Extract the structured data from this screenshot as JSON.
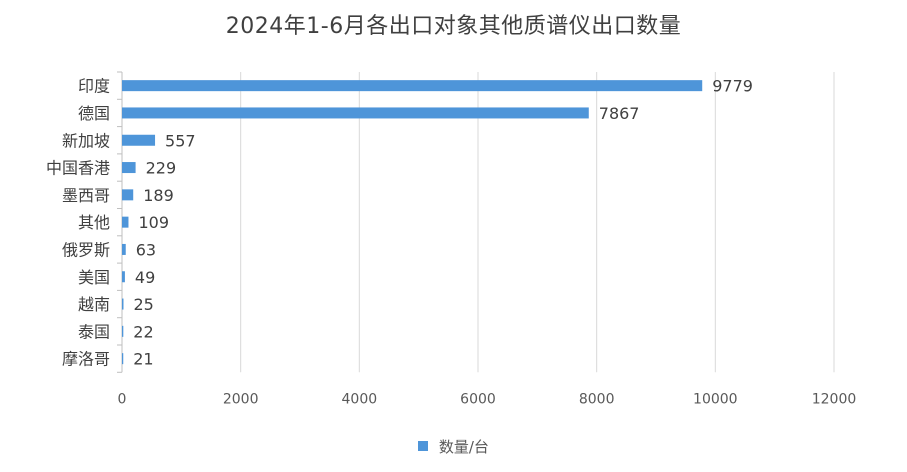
{
  "chart_data": {
    "type": "bar",
    "orientation": "horizontal",
    "title": "2024年1-6月各出口对象其他质谱仪出口数量",
    "categories": [
      "印度",
      "德国",
      "新加坡",
      "中国香港",
      "墨西哥",
      "其他",
      "俄罗斯",
      "美国",
      "越南",
      "泰国",
      "摩洛哥"
    ],
    "series": [
      {
        "name": "数量/台",
        "values": [
          9779,
          7867,
          557,
          229,
          189,
          109,
          63,
          49,
          25,
          22,
          21
        ]
      }
    ],
    "xlim": [
      0,
      12000
    ],
    "x_ticks": [
      0,
      2000,
      4000,
      6000,
      8000,
      10000,
      12000
    ],
    "x_tick_labels": [
      "0",
      "2000",
      "4000",
      "6000",
      "8000",
      "10000",
      "12000"
    ],
    "grid": "vertical gridlines",
    "legend_position": "bottom",
    "bar_color": "#4E95D9",
    "data_labels": true
  }
}
